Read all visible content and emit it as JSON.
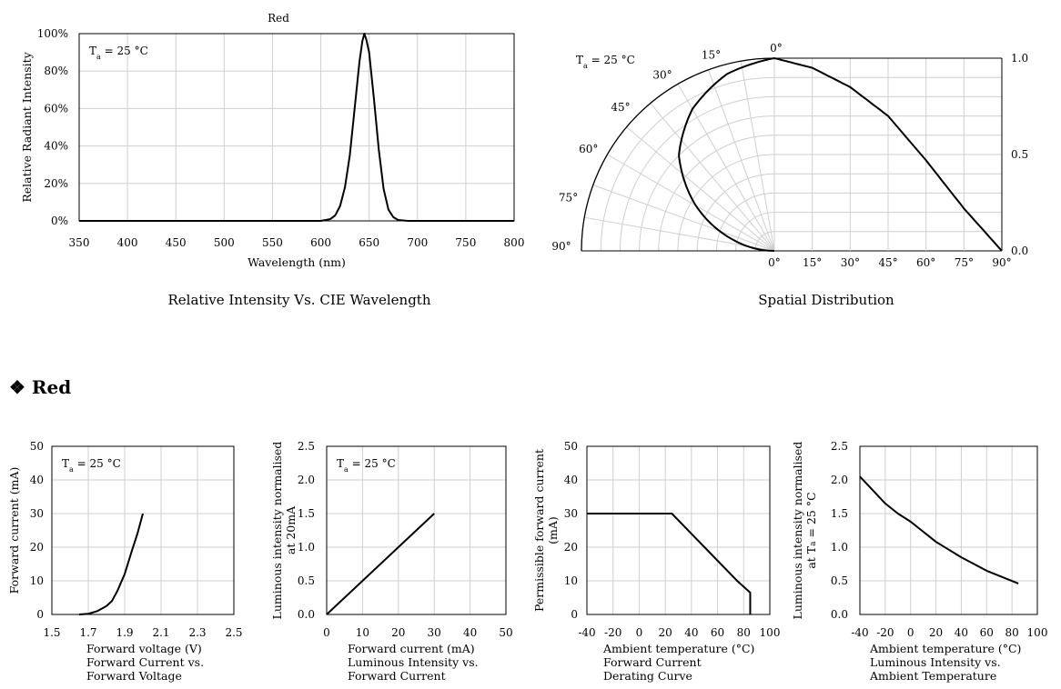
{
  "section_heading": {
    "bullet": "❖",
    "text": "Red"
  },
  "chart_data": [
    {
      "id": "spectrum",
      "type": "line",
      "title": "Red",
      "caption": "Relative Intensity Vs. CIE Wavelength",
      "annotation": "Ta = 25 °C",
      "xlabel": "Wavelength (nm)",
      "ylabel": "Relative  Radiant Intensity",
      "xlim": [
        350,
        800
      ],
      "ylim": [
        0,
        100
      ],
      "xticks": [
        "350",
        "400",
        "450",
        "500",
        "550",
        "600",
        "650",
        "700",
        "750",
        "800"
      ],
      "yticks": [
        "0%",
        "20%",
        "40%",
        "60%",
        "80%",
        "100%"
      ],
      "grid": true,
      "series": [
        {
          "x": [
            350,
            600,
            605,
            610,
            615,
            620,
            625,
            630,
            635,
            640,
            643,
            645,
            647,
            650,
            655,
            660,
            665,
            670,
            675,
            680,
            690,
            800
          ],
          "y": [
            0,
            0,
            0.5,
            1,
            3,
            8,
            18,
            35,
            60,
            85,
            96,
            100,
            97,
            90,
            65,
            38,
            17,
            6,
            2,
            0.5,
            0,
            0
          ]
        }
      ]
    },
    {
      "id": "spatial",
      "type": "polar",
      "caption": "Spatial Distribution",
      "annotation": "Ta = 25 °C",
      "angle_labels_left": [
        "0°",
        "15°",
        "30°",
        "45°",
        "60°",
        "75°",
        "90°"
      ],
      "angle_labels_bottom": [
        "0°",
        "15°",
        "30°",
        "45°",
        "60°",
        "75°",
        "90°"
      ],
      "right_ticks": [
        "1.0",
        "0.5",
        "0.0"
      ],
      "angle_deg": [
        0,
        15,
        30,
        45,
        60,
        75,
        90
      ],
      "relative_intensity": [
        1.0,
        0.95,
        0.85,
        0.7,
        0.47,
        0.22,
        0.0
      ]
    },
    {
      "id": "iv",
      "type": "line",
      "annotation": "Ta = 25 °C",
      "xlabel": "Forward voltage (V)",
      "caption": [
        "Forward Current vs.",
        "Forward Voltage"
      ],
      "ylabel": "Forward current (mA)",
      "xlim": [
        1.5,
        2.5
      ],
      "ylim": [
        0,
        50
      ],
      "xticks": [
        "1.5",
        "1.7",
        "1.9",
        "2.1",
        "2.3",
        "2.5"
      ],
      "yticks": [
        "0",
        "10",
        "20",
        "30",
        "40",
        "50"
      ],
      "grid": true,
      "series": [
        {
          "x": [
            1.65,
            1.7,
            1.75,
            1.8,
            1.83,
            1.86,
            1.9,
            1.94,
            1.97,
            2.0
          ],
          "y": [
            0,
            0.2,
            1,
            2.5,
            4,
            7,
            12,
            19,
            24,
            30
          ]
        }
      ]
    },
    {
      "id": "lum_current",
      "type": "line",
      "annotation": "Ta = 25 °C",
      "xlabel": "Forward current (mA)",
      "caption": [
        "Luminous Intensity vs.",
        "Forward Current"
      ],
      "ylabel": [
        "Luminous intensity normalised",
        "at 20mA"
      ],
      "xlim": [
        0,
        50
      ],
      "ylim": [
        0,
        2.5
      ],
      "xticks": [
        "0",
        "10",
        "20",
        "30",
        "40",
        "50"
      ],
      "yticks": [
        "0.0",
        "0.5",
        "1.0",
        "1.5",
        "2.0",
        "2.5"
      ],
      "grid": true,
      "series": [
        {
          "x": [
            0,
            30
          ],
          "y": [
            0,
            1.5
          ]
        }
      ]
    },
    {
      "id": "derating",
      "type": "line",
      "xlabel": "Ambient temperature (°C)",
      "caption": [
        "Forward Current",
        "Derating  Curve"
      ],
      "ylabel": [
        "Permissible forward current",
        "(mA)"
      ],
      "xlim": [
        -40,
        100
      ],
      "ylim": [
        0,
        50
      ],
      "xticks": [
        "-40",
        "-20",
        "0",
        "20",
        "40",
        "60",
        "80",
        "100"
      ],
      "yticks": [
        "0",
        "10",
        "20",
        "30",
        "40",
        "50"
      ],
      "grid": true,
      "series": [
        {
          "x": [
            -40,
            25,
            50,
            75,
            85,
            85
          ],
          "y": [
            30,
            30,
            20,
            10,
            6.5,
            0
          ]
        }
      ]
    },
    {
      "id": "lum_temp",
      "type": "line",
      "xlabel": "Ambient temperature (°C)",
      "caption": [
        "Luminous Intensity vs.",
        "Ambient Temperature"
      ],
      "ylabel": [
        "Luminous intensity normalised",
        "at Ta = 25 °C"
      ],
      "xlim": [
        -40,
        100
      ],
      "ylim": [
        0,
        2.5
      ],
      "xticks": [
        "-40",
        "-20",
        "0",
        "20",
        "40",
        "60",
        "80",
        "100"
      ],
      "yticks": [
        "0.0",
        "0.5",
        "1.0",
        "1.5",
        "2.0",
        "2.5"
      ],
      "grid": true,
      "series": [
        {
          "x": [
            -40,
            -30,
            -20,
            -10,
            0,
            20,
            40,
            60,
            85
          ],
          "y": [
            2.05,
            1.85,
            1.65,
            1.5,
            1.38,
            1.08,
            0.85,
            0.65,
            0.46
          ]
        }
      ]
    }
  ]
}
